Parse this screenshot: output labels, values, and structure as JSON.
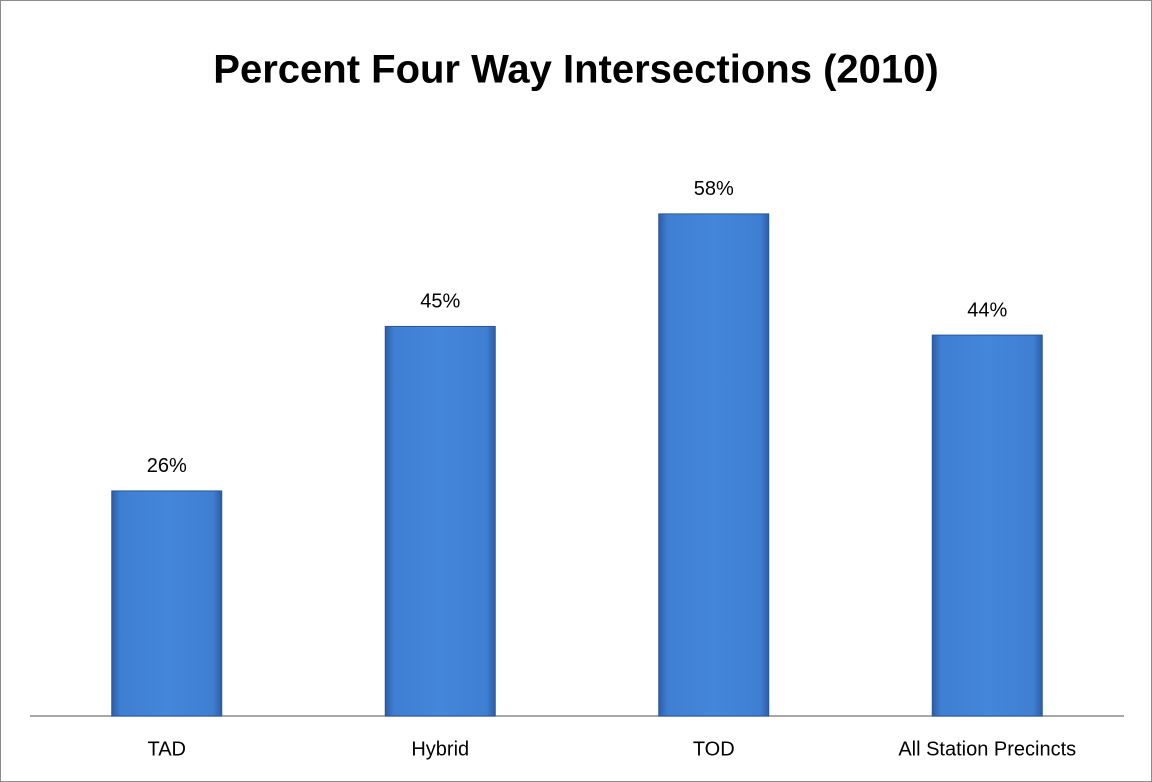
{
  "chart_data": {
    "type": "bar",
    "title": "Percent Four Way Intersections (2010)",
    "categories": [
      "TAD",
      "Hybrid",
      "TOD",
      "All Station Precincts"
    ],
    "values": [
      26,
      45,
      58,
      44
    ],
    "value_labels": [
      "26%",
      "45%",
      "58%",
      "44%"
    ],
    "color": "#3f7fd2",
    "ylim": [
      0,
      70
    ]
  }
}
